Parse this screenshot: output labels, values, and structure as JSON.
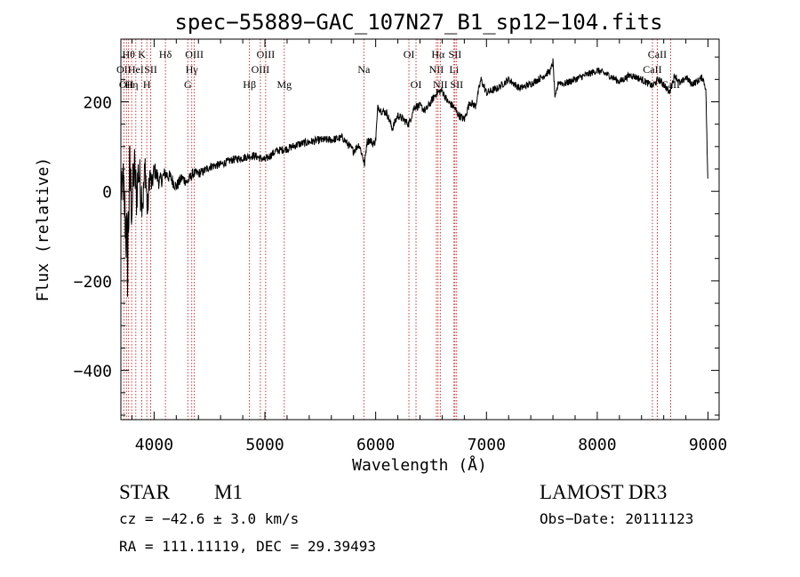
{
  "chart_data": {
    "type": "line",
    "title": "spec−55889−GAC_107N27_B1_sp12−104.fits",
    "xlabel": "Wavelength (Å)",
    "ylabel": "Flux (relative)",
    "xlim": [
      3700,
      9100
    ],
    "ylim": [
      -510,
      340
    ],
    "xticks": [
      {
        "value": 4000,
        "label": "4000"
      },
      {
        "value": 5000,
        "label": "5000"
      },
      {
        "value": 6000,
        "label": "6000"
      },
      {
        "value": 7000,
        "label": "7000"
      },
      {
        "value": 8000,
        "label": "8000"
      },
      {
        "value": 9000,
        "label": "9000"
      }
    ],
    "yticks": [
      {
        "value": -400,
        "label": "−400"
      },
      {
        "value": -200,
        "label": "−200"
      },
      {
        "value": 0,
        "label": "0"
      },
      {
        "value": 200,
        "label": "200"
      }
    ],
    "series": [
      {
        "name": "flux",
        "x": [
          3700,
          3720,
          3740,
          3760,
          3780,
          3800,
          3820,
          3840,
          3860,
          3880,
          3900,
          3920,
          3940,
          3960,
          3980,
          4000,
          4050,
          4100,
          4150,
          4200,
          4250,
          4300,
          4350,
          4400,
          4450,
          4500,
          4600,
          4700,
          4800,
          4900,
          5000,
          5100,
          5200,
          5300,
          5400,
          5500,
          5600,
          5700,
          5800,
          5850,
          5880,
          5900,
          5920,
          5950,
          5980,
          6000,
          6020,
          6050,
          6100,
          6150,
          6200,
          6250,
          6300,
          6350,
          6400,
          6450,
          6500,
          6550,
          6600,
          6650,
          6700,
          6750,
          6800,
          6850,
          6900,
          6950,
          7000,
          7100,
          7200,
          7300,
          7400,
          7500,
          7580,
          7600,
          7620,
          7650,
          7700,
          7800,
          7900,
          8000,
          8100,
          8200,
          8300,
          8400,
          8500,
          8550,
          8600,
          8650,
          8700,
          8750,
          8800,
          8850,
          8900,
          8950,
          8980,
          9000
        ],
        "y": [
          -10,
          20,
          -60,
          -150,
          40,
          -40,
          60,
          -10,
          50,
          0,
          -20,
          60,
          -50,
          40,
          10,
          50,
          20,
          40,
          30,
          10,
          30,
          20,
          40,
          40,
          45,
          55,
          60,
          70,
          75,
          80,
          70,
          90,
          95,
          105,
          110,
          115,
          115,
          120,
          90,
          105,
          80,
          60,
          110,
          115,
          105,
          115,
          190,
          180,
          175,
          140,
          170,
          160,
          150,
          190,
          190,
          180,
          200,
          220,
          225,
          200,
          190,
          170,
          160,
          200,
          190,
          250,
          220,
          230,
          250,
          230,
          240,
          255,
          270,
          290,
          205,
          245,
          240,
          250,
          260,
          270,
          260,
          245,
          260,
          250,
          235,
          250,
          240,
          220,
          260,
          240,
          255,
          240,
          245,
          255,
          230,
          0
        ],
        "noise": [
          30,
          60,
          80,
          110,
          90,
          70,
          60,
          60,
          55,
          55,
          40,
          45,
          35,
          30,
          25,
          20,
          20,
          16,
          15,
          14,
          13,
          12,
          12,
          11,
          10,
          10,
          9,
          9,
          9,
          9,
          9,
          9,
          9,
          9,
          9,
          9,
          9,
          9,
          9,
          9,
          9,
          9,
          9,
          9,
          9,
          9,
          9,
          9,
          9,
          9,
          9,
          9,
          9,
          9,
          9,
          9,
          9,
          9,
          9,
          9,
          9,
          9,
          9,
          9,
          9,
          9,
          9,
          8,
          8,
          8,
          8,
          8,
          8,
          8,
          8,
          8,
          8,
          8,
          8,
          8,
          8,
          8,
          8,
          8,
          8,
          8,
          8,
          8,
          8,
          8,
          8,
          8,
          8,
          8,
          8,
          8
        ]
      }
    ],
    "lines": [
      {
        "wl": 3727,
        "label": "OII",
        "row": 2
      },
      {
        "wl": 3750,
        "label": "OII",
        "row": 3
      },
      {
        "wl": 3770,
        "label": "Hθ",
        "row": 1
      },
      {
        "wl": 3797,
        "label": "Hη",
        "row": 3
      },
      {
        "wl": 3835,
        "label": "HeI",
        "row": 2
      },
      {
        "wl": 3889,
        "label": "K",
        "row": 1
      },
      {
        "wl": 3934,
        "label": "H",
        "row": 3
      },
      {
        "wl": 3969,
        "label": "SII",
        "row": 2
      },
      {
        "wl": 4102,
        "label": "Hδ",
        "row": 1
      },
      {
        "wl": 4304,
        "label": "G",
        "row": 3
      },
      {
        "wl": 4340,
        "label": "Hγ",
        "row": 2
      },
      {
        "wl": 4363,
        "label": "OIII",
        "row": 1
      },
      {
        "wl": 4861,
        "label": "Hβ",
        "row": 3
      },
      {
        "wl": 4959,
        "label": "OIII",
        "row": 2
      },
      {
        "wl": 5007,
        "label": "OIII",
        "row": 1
      },
      {
        "wl": 5175,
        "label": "Mg",
        "row": 3
      },
      {
        "wl": 5893,
        "label": "Na",
        "row": 2
      },
      {
        "wl": 6300,
        "label": "OI",
        "row": 1
      },
      {
        "wl": 6364,
        "label": "OI",
        "row": 3
      },
      {
        "wl": 6548,
        "label": "NII",
        "row": 2
      },
      {
        "wl": 6563,
        "label": "Hα",
        "row": 1
      },
      {
        "wl": 6583,
        "label": "NII",
        "row": 3
      },
      {
        "wl": 6707,
        "label": "Li",
        "row": 2
      },
      {
        "wl": 6716,
        "label": "SII",
        "row": 1
      },
      {
        "wl": 6731,
        "label": "SII",
        "row": 3
      },
      {
        "wl": 8498,
        "label": "CaII",
        "row": 2
      },
      {
        "wl": 8542,
        "label": "CaII",
        "row": 1
      },
      {
        "wl": 8662,
        "label": "CaII",
        "row": 3
      }
    ]
  },
  "info": {
    "class_label": "STAR",
    "subclass": "M1",
    "cz": "cz = −42.6 ± 3.0 km/s",
    "coords": "RA = 111.11119, DEC =  29.39493",
    "survey": "LAMOST DR3",
    "obs_date": "Obs−Date: 20111123"
  },
  "colors": {
    "spectrum": "#000000",
    "line_markers": "#cc0000",
    "text": "#000000"
  }
}
